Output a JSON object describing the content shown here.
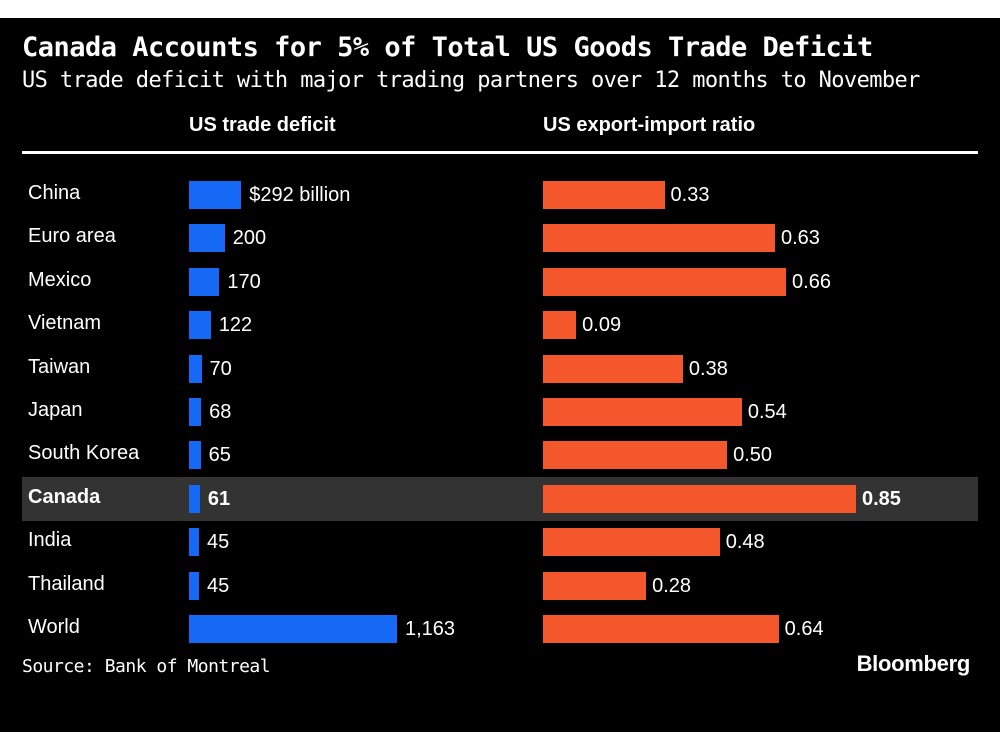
{
  "chart_data": {
    "type": "bar",
    "title": "Canada Accounts for 5% of Total US Goods Trade Deficit",
    "subtitle": "US trade deficit with major trading partners over 12 months to November",
    "categories": [
      "China",
      "Euro area",
      "Mexico",
      "Vietnam",
      "Taiwan",
      "Japan",
      "South Korea",
      "Canada",
      "India",
      "Thailand",
      "World"
    ],
    "highlight": "Canada",
    "series": [
      {
        "name": "US trade deficit",
        "color": "#1569f5",
        "values": [
          292,
          200,
          170,
          122,
          70,
          68,
          65,
          61,
          45,
          45,
          1163
        ],
        "labels": [
          "$292 billion",
          "200",
          "170",
          "122",
          "70",
          "68",
          "65",
          "61",
          "45",
          "45",
          "1,163"
        ]
      },
      {
        "name": "US export-import ratio",
        "color": "#f4572c",
        "values": [
          0.33,
          0.63,
          0.66,
          0.09,
          0.38,
          0.54,
          0.5,
          0.85,
          0.48,
          0.28,
          0.64
        ],
        "labels": [
          "0.33",
          "0.63",
          "0.66",
          "0.09",
          "0.38",
          "0.54",
          "0.50",
          "0.85",
          "0.48",
          "0.28",
          "0.64"
        ]
      }
    ],
    "source": "Source: Bank of Montreal",
    "brand": "Bloomberg"
  }
}
